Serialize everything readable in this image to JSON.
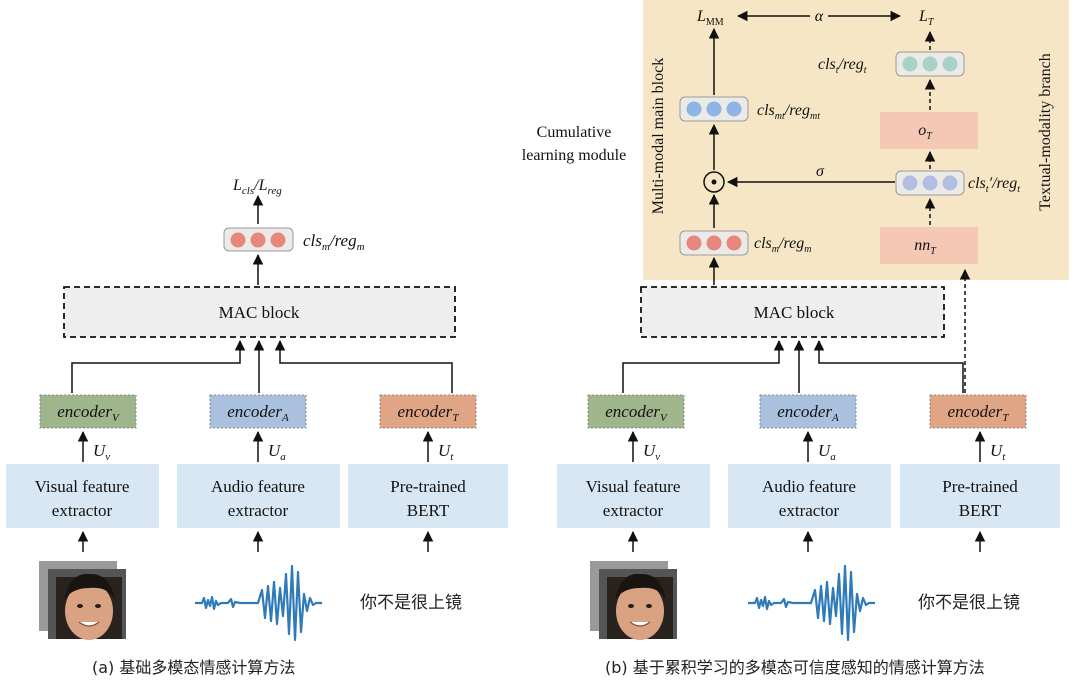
{
  "left": {
    "caption": "(a) 基础多模态情感计算方法",
    "loss": {
      "main": "L",
      "sub1": "cls",
      "sep": "/L",
      "sub2": "reg"
    },
    "output": {
      "main1": "cls",
      "sub1": "m",
      "sep": "/reg",
      "sub2": "m"
    },
    "mac": "MAC block",
    "encoders": [
      {
        "main": "encoder",
        "sub": "V",
        "color": "#9fb58c"
      },
      {
        "main": "encoder",
        "sub": "A",
        "color": "#a9c1de"
      },
      {
        "main": "encoder",
        "sub": "T",
        "color": "#e0a585"
      }
    ],
    "features": [
      {
        "main": "U",
        "sub": "v"
      },
      {
        "main": "U",
        "sub": "a"
      },
      {
        "main": "U",
        "sub": "t"
      }
    ],
    "extractors": [
      {
        "line1": "Visual feature",
        "line2": "extractor"
      },
      {
        "line1": "Audio feature",
        "line2": "extractor"
      },
      {
        "line1": "Pre-trained",
        "line2": "BERT"
      }
    ],
    "text_input": "你不是很上镜"
  },
  "right": {
    "caption": "(b) 基于累积学习的多模态可信度感知的情感计算方法",
    "cumulative_label": [
      "Cumulative",
      "learning module"
    ],
    "main_block_label": "Multi-modal main block",
    "textual_branch_label": "Textual-modality branch",
    "l_mm": {
      "main": "L",
      "sub": "MM"
    },
    "alpha": "α",
    "l_t": {
      "main": "L",
      "sub": "T"
    },
    "cls_t": {
      "a": "cls",
      "as": "t",
      "b": "/reg",
      "bs": "t"
    },
    "cls_mt": {
      "a": "cls",
      "as": "mt",
      "b": "/reg",
      "bs": "mt"
    },
    "o_t": {
      "main": "o",
      "sub": "T"
    },
    "sigma": "σ",
    "odot": "⊙",
    "cls_t_prime": {
      "a": "cls",
      "as": "t",
      "b": "′/reg",
      "bs": "t"
    },
    "cls_m": {
      "a": "cls",
      "as": "m",
      "b": "/reg",
      "bs": "m"
    },
    "nn_t": {
      "main": "nn",
      "sub": "T"
    },
    "mac": "MAC block",
    "encoders": [
      {
        "main": "encoder",
        "sub": "V",
        "color": "#9fb58c"
      },
      {
        "main": "encoder",
        "sub": "A",
        "color": "#a9c1de"
      },
      {
        "main": "encoder",
        "sub": "T",
        "color": "#e0a585"
      }
    ],
    "features": [
      {
        "main": "U",
        "sub": "v"
      },
      {
        "main": "U",
        "sub": "a"
      },
      {
        "main": "U",
        "sub": "t"
      }
    ],
    "extractors": [
      {
        "line1": "Visual feature",
        "line2": "extractor"
      },
      {
        "line1": "Audio feature",
        "line2": "extractor"
      },
      {
        "line1": "Pre-trained",
        "line2": "BERT"
      }
    ],
    "text_input": "你不是很上镜"
  },
  "colors": {
    "panel_bg": "#f6e6c6",
    "extractor_bg": "#d7e8f4",
    "mac_bg": "#eeeeee",
    "red_dot": "#e7867d",
    "blue_dot": "#8db4e2",
    "teal_dot": "#a7d3c6",
    "branch_box": "#f4c8b5"
  }
}
